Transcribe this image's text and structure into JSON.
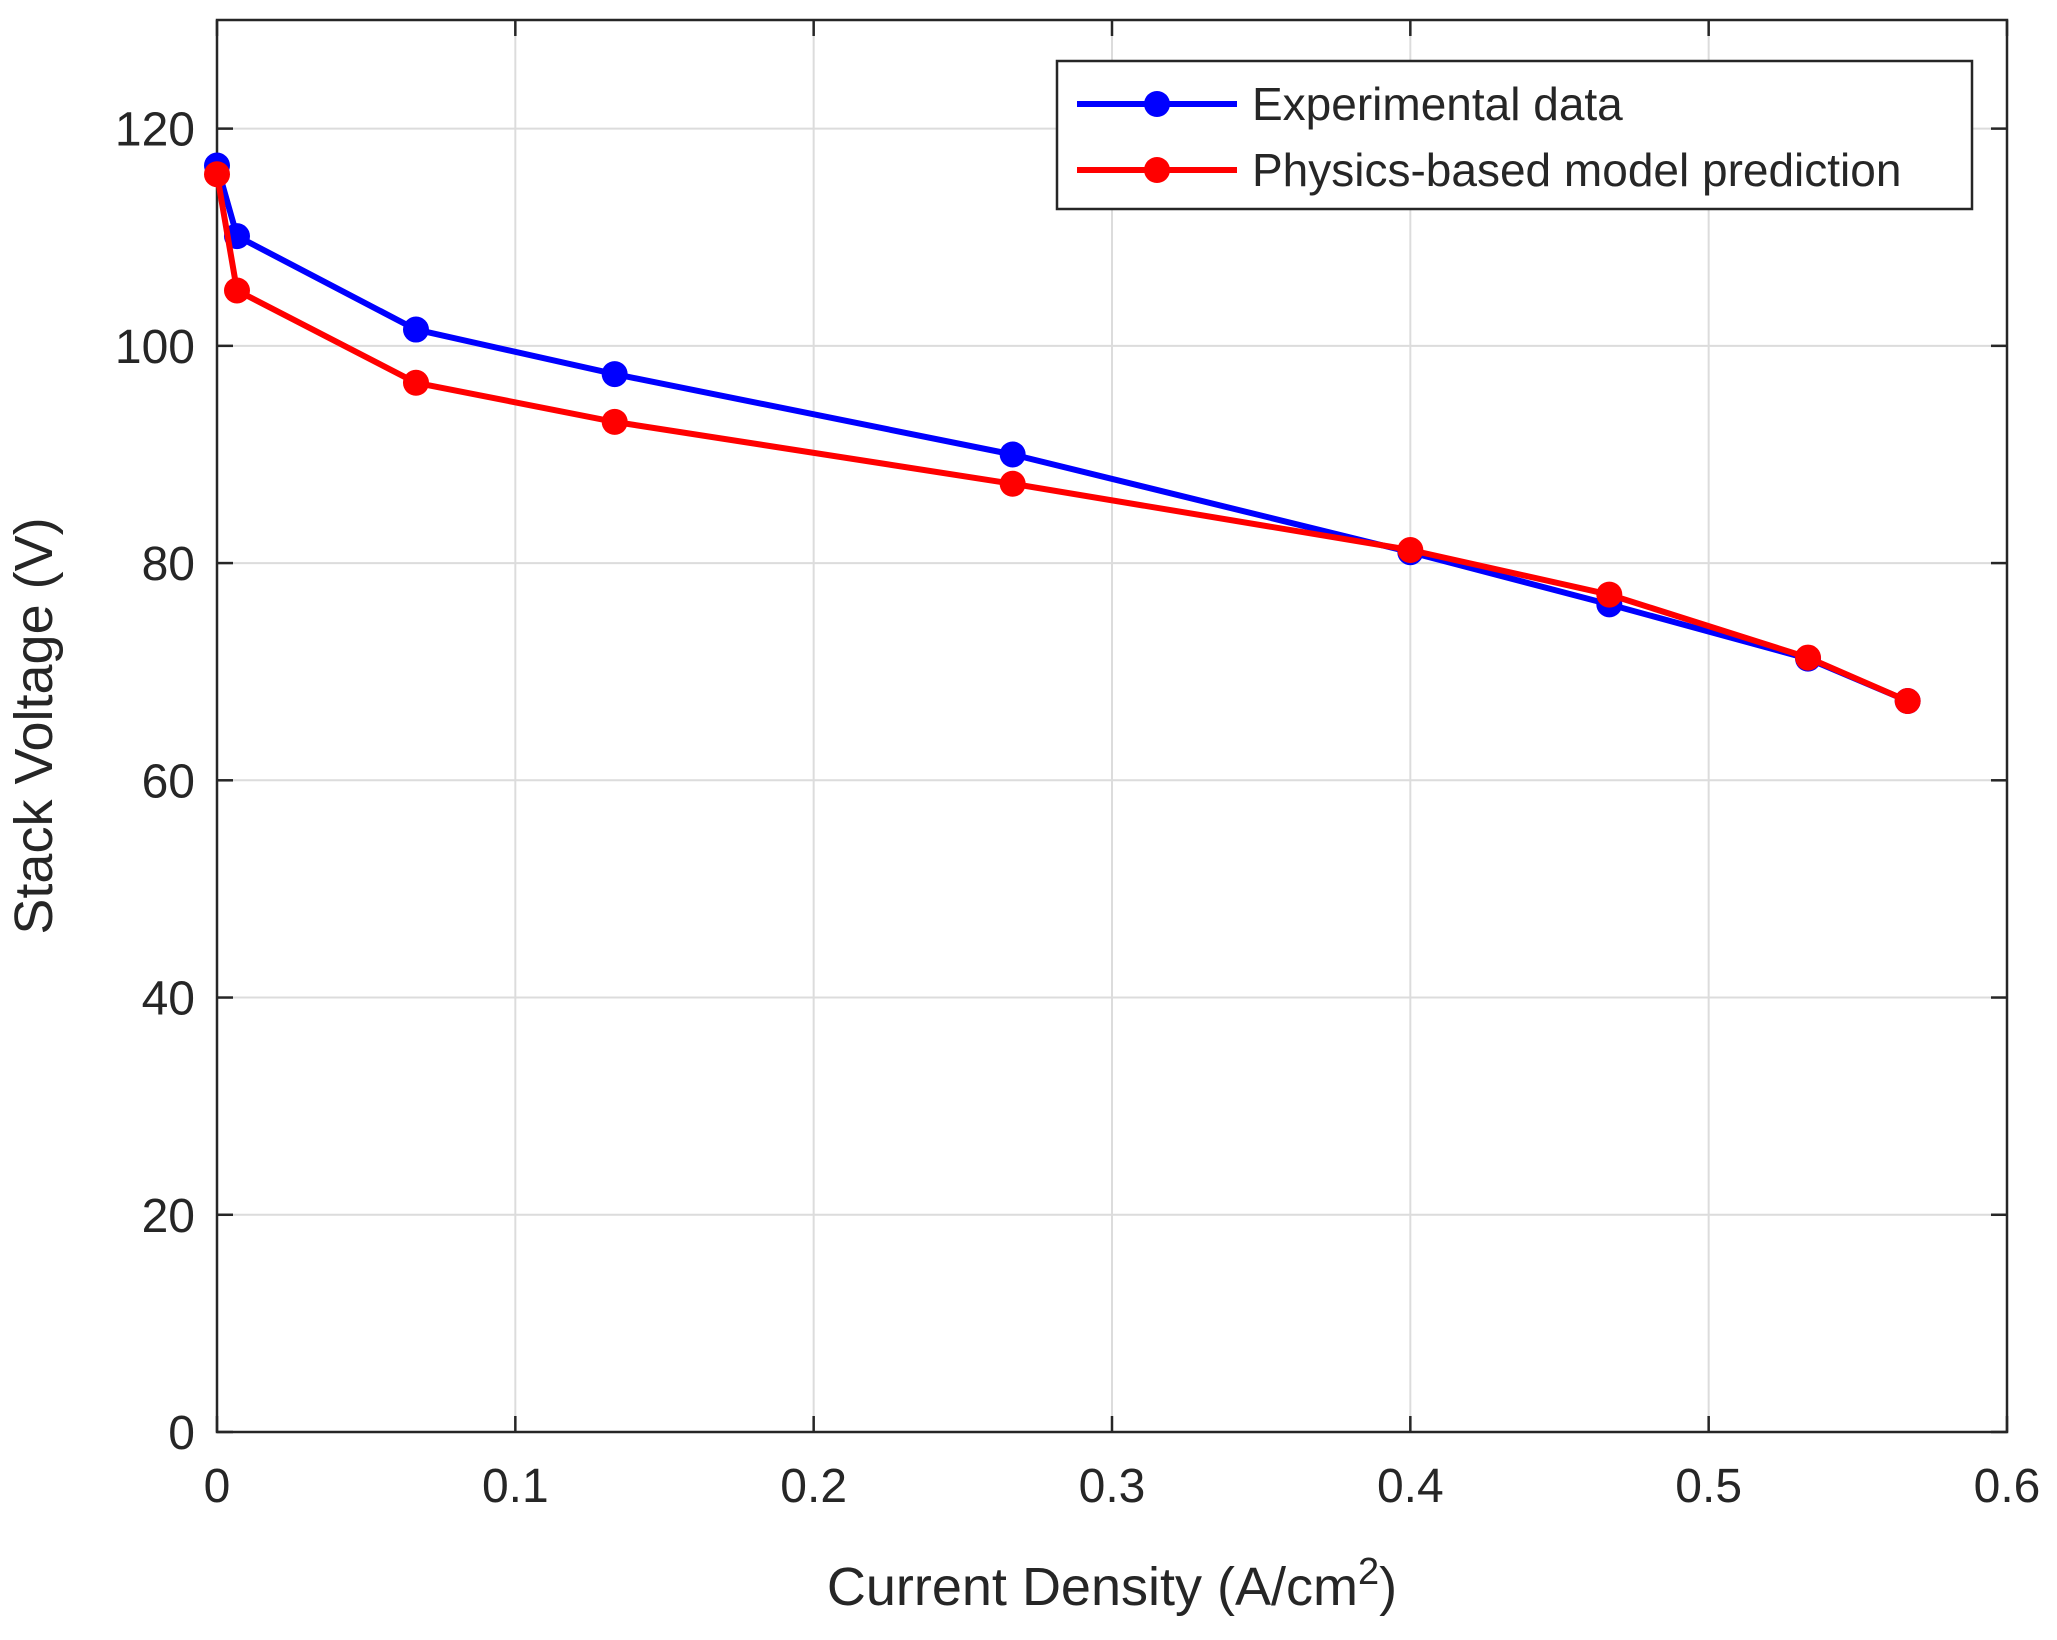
{
  "chart_data": {
    "type": "line",
    "title": "",
    "xlabel": "Current Density (A/cm",
    "xlabel_superscript": "2",
    "xlabel_suffix": ")",
    "ylabel": "Stack Voltage (V)",
    "xlim": [
      0,
      0.6
    ],
    "ylim": [
      0,
      130
    ],
    "xticks": [
      0,
      0.1,
      0.2,
      0.3,
      0.4,
      0.5,
      0.6
    ],
    "xtick_labels": [
      "0",
      "0.1",
      "0.2",
      "0.3",
      "0.4",
      "0.5",
      "0.6"
    ],
    "yticks": [
      0,
      20,
      40,
      60,
      80,
      100,
      120
    ],
    "ytick_labels": [
      "0",
      "20",
      "40",
      "60",
      "80",
      "100",
      "120"
    ],
    "grid": true,
    "legend_position": "top-right",
    "series": [
      {
        "name": "Experimental data",
        "color": "#0000ff",
        "marker": "circle",
        "x": [
          0,
          0.0067,
          0.0667,
          0.1333,
          0.2667,
          0.4,
          0.4667,
          0.5333,
          0.5667
        ],
        "y": [
          116.6,
          110.1,
          101.5,
          97.4,
          90,
          81,
          76.2,
          71.2,
          67.3
        ]
      },
      {
        "name": "Physics-based model prediction",
        "color": "#ff0000",
        "marker": "circle",
        "x": [
          0,
          0.0067,
          0.0667,
          0.1333,
          0.2667,
          0.4,
          0.4667,
          0.5333,
          0.5667
        ],
        "y": [
          115.8,
          105.1,
          96.6,
          93,
          87.3,
          81.2,
          77.1,
          71.3,
          67.3
        ]
      }
    ]
  }
}
